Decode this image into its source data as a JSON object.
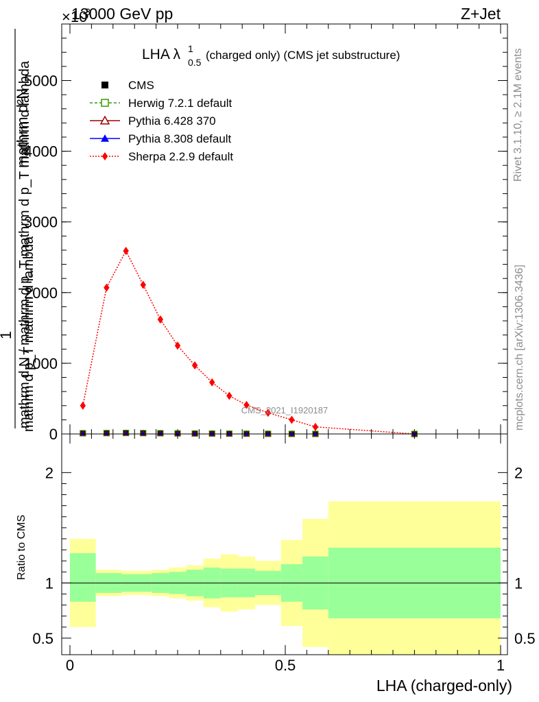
{
  "header": {
    "left": "13000 GeV pp",
    "right": "Z+Jet",
    "exponent": "×10"
  },
  "plot_title": {
    "prefix": "LHA λ",
    "sup": "1",
    "sub": "0.5",
    "suffix": "(charged only) (CMS jet substructure)"
  },
  "side_text": {
    "rivet": "Rivet 3.1.10, ≥ 2.1M events",
    "mcplots": "mcplots.cern.ch [arXiv:1306.3436]"
  },
  "watermark": "CMS_2021_I1920187",
  "y_axis_label": {
    "num": "mathrm d²N",
    "frac_one": "1",
    "mid": "mathrm d p_T mathrm d lambda",
    "den": "mathrm d N / mathrm d p_T mathrm d p_T mathrm d lambda"
  },
  "x_axis_label": "LHA (charged-only)",
  "ratio_ylabel": "Ratio to CMS",
  "colors": {
    "sherpa": "#ff0000",
    "herwig": "#339900",
    "pythia6": "#990000",
    "pythia8": "#0000ff",
    "band_inner": "#99ff99",
    "band_outer": "#ffff99"
  },
  "chart_data": [
    {
      "type": "line",
      "xlim": [
        0,
        1
      ],
      "ylim": [
        0,
        5.8
      ],
      "y_exponent": 3,
      "yticks": [
        0,
        1,
        2,
        3,
        4,
        5
      ],
      "ytick_labels": [
        "0",
        "1000",
        "2000",
        "3000",
        "4000",
        "5000"
      ],
      "legend_position": "top-left",
      "legend": [
        {
          "label": "CMS",
          "marker": "square-filled",
          "color": "#000000"
        },
        {
          "label": "Herwig 7.2.1 default",
          "marker": "square-open",
          "color": "#339900",
          "dash": "dashed"
        },
        {
          "label": "Pythia 6.428 370",
          "marker": "triangle-open",
          "color": "#990000",
          "dash": "solid"
        },
        {
          "label": "Pythia 8.308 default",
          "marker": "triangle-filled",
          "color": "#0000ff",
          "dash": "solid"
        },
        {
          "label": "Sherpa 2.2.9 default",
          "marker": "diamond-filled",
          "color": "#ff0000",
          "dash": "dotted"
        }
      ],
      "x": [
        0.03,
        0.085,
        0.13,
        0.17,
        0.21,
        0.25,
        0.29,
        0.33,
        0.37,
        0.41,
        0.46,
        0.515,
        0.57,
        0.8
      ],
      "series": [
        {
          "name": "Sherpa 2.2.9 default",
          "values": [
            0.4,
            2.07,
            2.59,
            2.11,
            1.62,
            1.25,
            0.97,
            0.73,
            0.54,
            0.41,
            0.3,
            0.2,
            0.1,
            0.0
          ]
        },
        {
          "name": "CMS",
          "values": [
            0.01,
            0.012,
            0.014,
            0.012,
            0.01,
            0.008,
            0.006,
            0.005,
            0.004,
            0.003,
            0.002,
            0.001,
            0.0005,
            0.0
          ]
        },
        {
          "name": "Herwig 7.2.1 default",
          "values": [
            0.01,
            0.012,
            0.014,
            0.012,
            0.01,
            0.008,
            0.006,
            0.005,
            0.004,
            0.003,
            0.002,
            0.001,
            0.0005,
            0.0
          ]
        },
        {
          "name": "Pythia 6.428 370",
          "values": [
            0.01,
            0.012,
            0.014,
            0.012,
            0.01,
            0.008,
            0.006,
            0.005,
            0.004,
            0.003,
            0.002,
            0.001,
            0.0005,
            0.0
          ]
        },
        {
          "name": "Pythia 8.308 default",
          "values": [
            0.01,
            0.012,
            0.014,
            0.012,
            0.01,
            0.008,
            0.006,
            0.005,
            0.004,
            0.003,
            0.002,
            0.001,
            0.0005,
            0.0
          ]
        }
      ]
    },
    {
      "type": "area",
      "xlim": [
        0,
        1
      ],
      "ylim": [
        0.35,
        2.35
      ],
      "yticks": [
        0.5,
        1,
        2
      ],
      "ytick_labels": [
        "0.5",
        "1",
        "2"
      ],
      "xticks": [
        0,
        0.5,
        1
      ],
      "xtick_labels": [
        "0",
        "0.5",
        "1"
      ],
      "reference_line": 1,
      "bins": [
        [
          0.0,
          0.06
        ],
        [
          0.06,
          0.12
        ],
        [
          0.12,
          0.16
        ],
        [
          0.16,
          0.19
        ],
        [
          0.19,
          0.23
        ],
        [
          0.23,
          0.27
        ],
        [
          0.27,
          0.31
        ],
        [
          0.31,
          0.35
        ],
        [
          0.35,
          0.39
        ],
        [
          0.39,
          0.43
        ],
        [
          0.43,
          0.49
        ],
        [
          0.49,
          0.54
        ],
        [
          0.54,
          0.6
        ],
        [
          0.6,
          1.0
        ]
      ],
      "inner_band": [
        [
          0.83,
          1.27
        ],
        [
          0.91,
          1.09
        ],
        [
          0.92,
          1.08
        ],
        [
          0.92,
          1.08
        ],
        [
          0.91,
          1.09
        ],
        [
          0.9,
          1.1
        ],
        [
          0.88,
          1.12
        ],
        [
          0.86,
          1.14
        ],
        [
          0.87,
          1.13
        ],
        [
          0.87,
          1.13
        ],
        [
          0.89,
          1.11
        ],
        [
          0.83,
          1.17
        ],
        [
          0.76,
          1.24
        ],
        [
          0.68,
          1.32
        ]
      ],
      "outer_band": [
        [
          0.6,
          1.4
        ],
        [
          0.88,
          1.12
        ],
        [
          0.89,
          1.11
        ],
        [
          0.89,
          1.11
        ],
        [
          0.88,
          1.12
        ],
        [
          0.86,
          1.14
        ],
        [
          0.84,
          1.16
        ],
        [
          0.78,
          1.22
        ],
        [
          0.74,
          1.26
        ],
        [
          0.76,
          1.24
        ],
        [
          0.8,
          1.2
        ],
        [
          0.61,
          1.39
        ],
        [
          0.42,
          1.58
        ],
        [
          0.35,
          1.74
        ]
      ]
    }
  ]
}
